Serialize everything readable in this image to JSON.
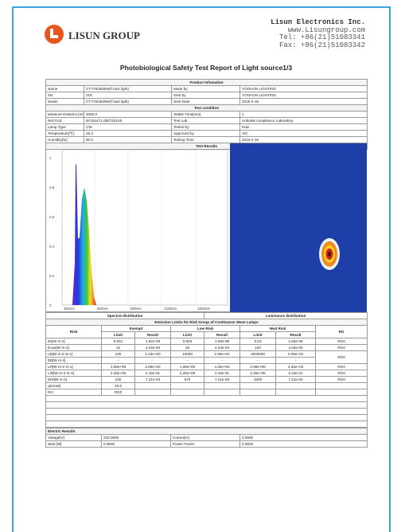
{
  "header": {
    "company": "LISUN GROUP",
    "contact": [
      "Lisun Electronics Inc.",
      "www.Lisungroup.com",
      "Tel: +86(21)51083341",
      "Fax: +86(21)51083342"
    ]
  },
  "title": "Photobiological Safety Test Report of Light source1/3",
  "product": {
    "heading": "Product Infomation",
    "rows": [
      [
        "Name",
        "CT-T004535W(Track light)",
        "Made by",
        "YOOHUN LIGHTING"
      ],
      [
        "SN",
        "S01",
        "Sent by",
        "YOOHUN LIGHTING"
      ],
      [
        "Model",
        "CT-T004535W(Track light)",
        "Sent Date",
        "2016-2-18"
      ]
    ]
  },
  "condition": {
    "heading": "Test condition",
    "rows": [
      [
        "Measure Distance [mm]",
        "3000.0",
        "Stable Time[min]",
        "1"
      ],
      [
        "Ref.FILE",
        "IEC62471,GB/T20145",
        "Test Lab",
        "Anbotek compliance Laboratory"
      ],
      [
        "Lamp Type",
        "CW",
        "Tested by",
        "Rain"
      ],
      [
        "Temperature[℃]",
        "25.3",
        "Approved by",
        "VIC"
      ],
      [
        "Humidity[%]",
        "60.0",
        "Testing Time",
        "2016-2-18"
      ]
    ]
  },
  "results": {
    "heading": "Test Results",
    "spectrum": {
      "yticks": [
        "0",
        "0.2",
        "0.4",
        "0.6",
        "0.8",
        "1"
      ],
      "xticks": [
        "300nm",
        "600nm",
        "900nm",
        "1200nm",
        "1500nm"
      ],
      "caption": "Spectral distribution"
    },
    "luminance": {
      "caption": "Luminance distribution"
    }
  },
  "emission": {
    "heading": "Emission Limits for Risk Group of Continuous Wave Lamps",
    "columns": {
      "risk": "Risk",
      "groups": [
        "Exempt",
        "Low Risk",
        "Mod Risk"
      ],
      "sub": [
        "Limit",
        "Result"
      ],
      "rg": "RG"
    },
    "rows": [
      [
        "Es[W·m-2]",
        "0.001",
        "1.92e-08",
        "0.003",
        "1.92e-08",
        "0.03",
        "1.92e-08",
        "RG0"
      ],
      [
        "Euva[W·m-2]",
        "10",
        "4.24e-04",
        "33",
        "4.24e-04",
        "100",
        "4.24e-04",
        "RG0"
      ],
      [
        "LB[W·m-2·sr-1]",
        "100",
        "1.23e+00",
        "10000",
        "2.06e+01",
        "4000000",
        "3.06e+01",
        "RG0"
      ],
      [
        "EB[W·m-2]",
        "-",
        "-",
        "-",
        "-",
        "-",
        "-"
      ],
      [
        "LR[W·m-2·sr-1]",
        "1.06e+06",
        "2.89e+02",
        "1.06e+06",
        "4.32e+02",
        "2.88e+06",
        "4.32e+02",
        "RG0"
      ],
      [
        "LIR[W·m-2·sr-1]",
        "2.26e+05",
        "2.16e-01",
        "2.26e+05",
        "2.16e-01",
        "2.26e+05",
        "2.16e-01",
        "RG0"
      ],
      [
        "EIR[W·m-2]",
        "100",
        "7.21e-03",
        "570",
        "7.21e-03",
        "3200",
        "7.21e-03",
        "RG0"
      ],
      [
        "α(mrad)",
        "26.5"
      ],
      [
        "RG",
        "RG0"
      ]
    ]
  },
  "electric": {
    "heading": "Electric Results",
    "rows": [
      [
        "Voltage[V]",
        "220.0000",
        "Current[A]",
        "0.0000"
      ],
      [
        "Watt [W]",
        "0.0000",
        "Power Factor",
        "0.0000"
      ]
    ]
  }
}
